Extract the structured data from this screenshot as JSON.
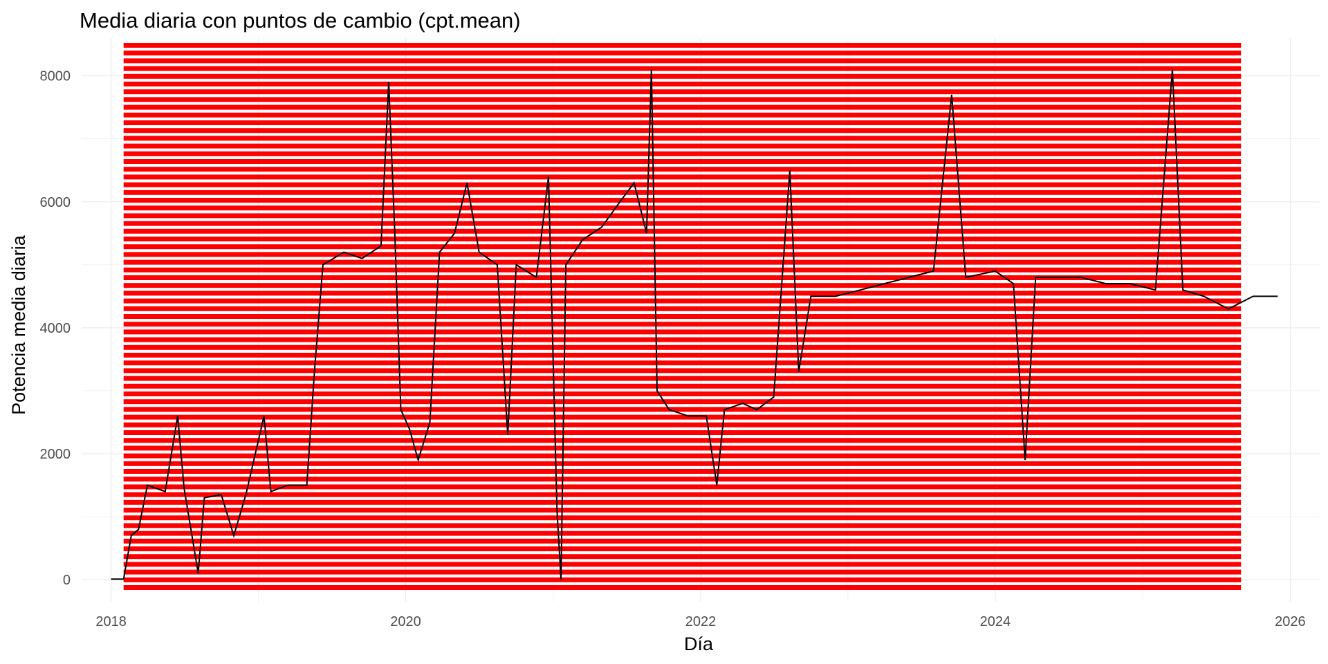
{
  "chart_data": {
    "type": "line",
    "title": "Media diaria con puntos de cambio (cpt.mean)",
    "xlabel": "Día",
    "ylabel": "Potencia media diaria",
    "xlim": [
      "2017-10-20",
      "2026-03-15"
    ],
    "ylim": [
      -350,
      8600
    ],
    "x_ticks": [
      "2018",
      "2020",
      "2022",
      "2024",
      "2026"
    ],
    "y_ticks": [
      0,
      2000,
      4000,
      6000,
      8000
    ],
    "grid": true,
    "legend": "none",
    "series": [
      {
        "style": "black line",
        "points": [
          {
            "x": "2018-01-01",
            "y": 10
          },
          {
            "x": "2018-02-01",
            "y": 10
          },
          {
            "x": "2018-02-20",
            "y": 700
          },
          {
            "x": "2018-03-10",
            "y": 800
          },
          {
            "x": "2018-04-01",
            "y": 1500
          },
          {
            "x": "2018-05-15",
            "y": 1400
          },
          {
            "x": "2018-06-15",
            "y": 2600
          },
          {
            "x": "2018-07-01",
            "y": 1450
          },
          {
            "x": "2018-08-05",
            "y": 100
          },
          {
            "x": "2018-08-20",
            "y": 1300
          },
          {
            "x": "2018-10-01",
            "y": 1350
          },
          {
            "x": "2018-11-01",
            "y": 700
          },
          {
            "x": "2018-12-01",
            "y": 1350
          },
          {
            "x": "2019-01-15",
            "y": 2600
          },
          {
            "x": "2019-02-01",
            "y": 1400
          },
          {
            "x": "2019-03-15",
            "y": 1500
          },
          {
            "x": "2019-05-01",
            "y": 1500
          },
          {
            "x": "2019-05-20",
            "y": 3300
          },
          {
            "x": "2019-06-10",
            "y": 5000
          },
          {
            "x": "2019-08-01",
            "y": 5200
          },
          {
            "x": "2019-09-15",
            "y": 5100
          },
          {
            "x": "2019-11-01",
            "y": 5300
          },
          {
            "x": "2019-11-20",
            "y": 7900
          },
          {
            "x": "2019-12-05",
            "y": 5500
          },
          {
            "x": "2019-12-20",
            "y": 2700
          },
          {
            "x": "2020-01-10",
            "y": 2400
          },
          {
            "x": "2020-02-01",
            "y": 1900
          },
          {
            "x": "2020-03-01",
            "y": 2500
          },
          {
            "x": "2020-03-25",
            "y": 5200
          },
          {
            "x": "2020-05-01",
            "y": 5500
          },
          {
            "x": "2020-06-01",
            "y": 6300
          },
          {
            "x": "2020-07-01",
            "y": 5200
          },
          {
            "x": "2020-08-15",
            "y": 5000
          },
          {
            "x": "2020-09-10",
            "y": 2300
          },
          {
            "x": "2020-10-01",
            "y": 5000
          },
          {
            "x": "2020-11-20",
            "y": 4800
          },
          {
            "x": "2020-12-20",
            "y": 6400
          },
          {
            "x": "2021-01-10",
            "y": 1100
          },
          {
            "x": "2021-01-20",
            "y": 0
          },
          {
            "x": "2021-02-01",
            "y": 5000
          },
          {
            "x": "2021-03-15",
            "y": 5400
          },
          {
            "x": "2021-05-01",
            "y": 5600
          },
          {
            "x": "2021-06-15",
            "y": 6000
          },
          {
            "x": "2021-07-20",
            "y": 6300
          },
          {
            "x": "2021-08-20",
            "y": 5500
          },
          {
            "x": "2021-09-01",
            "y": 8100
          },
          {
            "x": "2021-09-15",
            "y": 3000
          },
          {
            "x": "2021-10-15",
            "y": 2700
          },
          {
            "x": "2021-12-01",
            "y": 2600
          },
          {
            "x": "2022-01-15",
            "y": 2600
          },
          {
            "x": "2022-02-10",
            "y": 1500
          },
          {
            "x": "2022-03-01",
            "y": 2700
          },
          {
            "x": "2022-04-15",
            "y": 2800
          },
          {
            "x": "2022-05-20",
            "y": 2700
          },
          {
            "x": "2022-07-01",
            "y": 2900
          },
          {
            "x": "2022-08-10",
            "y": 6500
          },
          {
            "x": "2022-09-01",
            "y": 3300
          },
          {
            "x": "2022-10-01",
            "y": 4500
          },
          {
            "x": "2022-12-01",
            "y": 4500
          },
          {
            "x": "2023-02-01",
            "y": 4600
          },
          {
            "x": "2023-04-01",
            "y": 4700
          },
          {
            "x": "2023-06-01",
            "y": 4800
          },
          {
            "x": "2023-08-01",
            "y": 4900
          },
          {
            "x": "2023-09-15",
            "y": 7700
          },
          {
            "x": "2023-10-20",
            "y": 4800
          },
          {
            "x": "2024-01-01",
            "y": 4900
          },
          {
            "x": "2024-02-15",
            "y": 4700
          },
          {
            "x": "2024-03-15",
            "y": 1900
          },
          {
            "x": "2024-04-10",
            "y": 4800
          },
          {
            "x": "2024-06-01",
            "y": 4800
          },
          {
            "x": "2024-08-01",
            "y": 4800
          },
          {
            "x": "2024-10-01",
            "y": 4700
          },
          {
            "x": "2024-12-01",
            "y": 4700
          },
          {
            "x": "2025-02-01",
            "y": 4600
          },
          {
            "x": "2025-03-15",
            "y": 8100
          },
          {
            "x": "2025-04-10",
            "y": 4600
          },
          {
            "x": "2025-06-01",
            "y": 4500
          },
          {
            "x": "2025-08-01",
            "y": 4300
          },
          {
            "x": "2025-10-01",
            "y": 4500
          },
          {
            "x": "2025-12-01",
            "y": 4500
          }
        ]
      }
    ],
    "changepoints_annotation": "dense red horizontal bands covering plot area",
    "colors": {
      "changepoint_bands": "#ff0000",
      "series_line": "#000000",
      "grid": "#ebebeb",
      "background": "#ffffff"
    }
  }
}
